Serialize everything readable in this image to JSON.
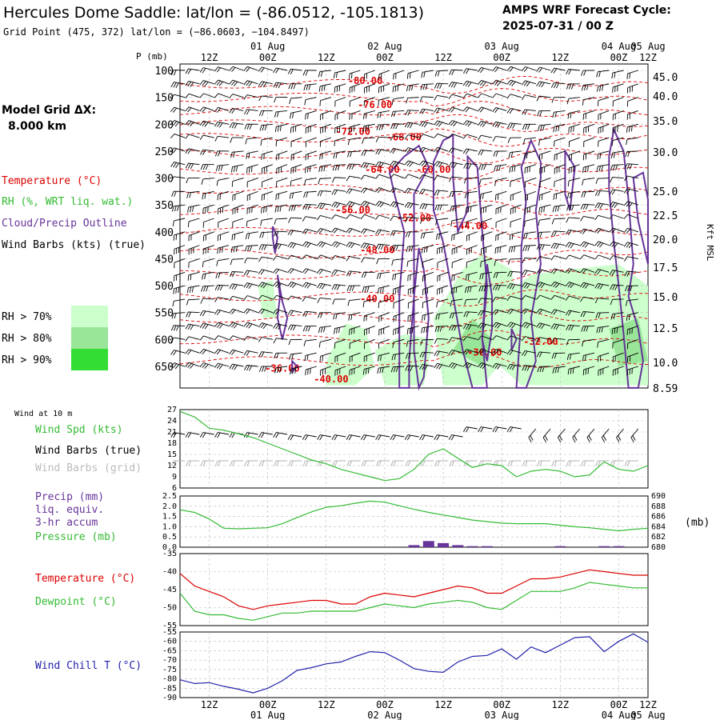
{
  "header": {
    "title": "Hercules Dome Saddle:  lat/lon = (-86.0512, -105.1813)",
    "subtitle": "Grid Point (475, 372) lat/lon = (−86.0603, −104.8497)",
    "cycle_label": "AMPS WRF Forecast Cycle:",
    "cycle_value": "2025-07-31 / 00  Z"
  },
  "time_axis": {
    "ticks": [
      "12Z",
      "00Z",
      "12Z",
      "00Z",
      "12Z",
      "00Z",
      "12Z",
      "00Z",
      "12Z",
      "00Z"
    ],
    "dates": [
      "01 Aug",
      "02 Aug",
      "03 Aug",
      "04 Aug",
      "05 Aug"
    ]
  },
  "left_legend": {
    "model_grid_line1": "Model Grid ΔX:",
    "model_grid_line2": "8.000 km",
    "temperature": "Temperature (°C)",
    "rh": "RH (%, WRT liq. wat.)",
    "cloud": "Cloud/Precip Outline",
    "wind": "Wind Barbs (kts) (true)",
    "rh70": "RH > 70%",
    "rh80": "RH > 80%",
    "rh90": "RH > 90%",
    "rh_colors": [
      "#ccffcc",
      "#99e699",
      "#33dd33"
    ]
  },
  "chart_data": [
    {
      "type": "contour",
      "name": "upper-air cross-section",
      "ylabel": "P (mb)",
      "y2label": "Kft MSL",
      "pressure_ticks": [
        "100",
        "150",
        "200",
        "250",
        "300",
        "350",
        "400",
        "450",
        "500",
        "550",
        "600",
        "650"
      ],
      "height_ticks": [
        "45.0",
        "40.0",
        "35.0",
        "30.0",
        "25.0",
        "22.5",
        "20.0",
        "17.5",
        "15.0",
        "12.5",
        "10.0",
        "8.59"
      ],
      "temperature_labels": [
        {
          "text": "-80.00",
          "t": 38.0,
          "p": 125
        },
        {
          "text": "-76.00",
          "t": 40.0,
          "p": 170
        },
        {
          "text": "-72.00",
          "t": 35.5,
          "p": 220
        },
        {
          "text": "-68.00",
          "t": 46.0,
          "p": 230
        },
        {
          "text": "-64.00",
          "t": 41.5,
          "p": 290
        },
        {
          "text": "-60.00",
          "t": 52.0,
          "p": 290
        },
        {
          "text": "-56.00",
          "t": 35.5,
          "p": 365
        },
        {
          "text": "-52.00",
          "t": 48.0,
          "p": 380
        },
        {
          "text": "-44.00",
          "t": 59.5,
          "p": 395
        },
        {
          "text": "-48.00",
          "t": 40.5,
          "p": 440
        },
        {
          "text": "-40.00",
          "t": 40.5,
          "p": 530
        },
        {
          "text": "-36.00",
          "t": 62.5,
          "p": 630
        },
        {
          "text": "-32.00",
          "t": 74.0,
          "p": 610
        },
        {
          "text": "-36.00",
          "t": 21.0,
          "p": 660
        },
        {
          "text": "-40.00",
          "t": 31.0,
          "p": 680
        }
      ],
      "colors": {
        "temperature": "#dd0000",
        "cloud": "#663399",
        "rh": "#33dd33",
        "wind": "#000000"
      }
    },
    {
      "type": "line",
      "name": "10 m wind",
      "panel_label": "Wind at 10 m",
      "series_label": "Wind Spd (kts)",
      "barbs_true_label": "Wind Barbs (true)",
      "barbs_grid_label": "Wind Barbs (grid)",
      "yticks": [
        "27",
        "24",
        "21",
        "18",
        "15",
        "12",
        "9",
        "6"
      ],
      "ylim": [
        6,
        27
      ],
      "color": "#33bb33",
      "x": [
        0,
        3,
        6,
        9,
        12,
        15,
        18,
        21,
        24,
        27,
        30,
        33,
        36,
        39,
        42,
        45,
        48,
        51,
        54,
        57,
        60,
        63,
        66,
        69,
        72,
        75,
        78,
        81,
        84,
        87,
        90,
        93,
        96
      ],
      "values": [
        26.5,
        25,
        22,
        21.5,
        20.5,
        19.5,
        18,
        16.5,
        15,
        13.5,
        12.5,
        11,
        10,
        9,
        8,
        8.5,
        11,
        15,
        16.5,
        14,
        11.5,
        12.5,
        12,
        9,
        10.5,
        11,
        10.5,
        9,
        9.5,
        13,
        11,
        10.5,
        12
      ]
    },
    {
      "type": "line",
      "name": "precip and pressure",
      "precip_label1": "Precip (mm)",
      "precip_label2": "liq. equiv.",
      "precip_label3": "3-hr accum",
      "pressure_label": "Pressure (mb)",
      "pressure_unit": "(mb)",
      "precip_yticks": [
        "2.5",
        "2.0",
        "1.5",
        "1.0",
        "0.5",
        "0.0"
      ],
      "pressure_yticks": [
        "690",
        "688",
        "686",
        "684",
        "682",
        "680"
      ],
      "precip_ylim": [
        0,
        2.5
      ],
      "pressure_ylim": [
        680,
        690
      ],
      "pressure_color": "#33bb33",
      "precip_color": "#663399",
      "x": [
        0,
        3,
        6,
        9,
        12,
        15,
        18,
        21,
        24,
        27,
        30,
        33,
        36,
        39,
        42,
        45,
        48,
        51,
        54,
        57,
        60,
        63,
        66,
        69,
        72,
        75,
        78,
        81,
        84,
        87,
        90,
        93,
        96
      ],
      "pressure": [
        687.3,
        686.8,
        685.5,
        683.7,
        683.6,
        683.7,
        683.8,
        684.6,
        685.8,
        686.9,
        687.8,
        688.1,
        688.6,
        689.0,
        688.8,
        688.1,
        687.4,
        686.8,
        686.3,
        685.8,
        685.3,
        685.0,
        684.7,
        684.6,
        684.6,
        684.6,
        684.3,
        684.0,
        683.8,
        683.5,
        683.2,
        683.5,
        683.7
      ],
      "precip": [
        0,
        0,
        0,
        0,
        0,
        0,
        0,
        0,
        0,
        0,
        0,
        0,
        0,
        0,
        0,
        0,
        0.1,
        0.3,
        0.2,
        0.1,
        0.05,
        0.05,
        0,
        0,
        0,
        0,
        0.05,
        0,
        0,
        0.05,
        0.05,
        0,
        0
      ]
    },
    {
      "type": "line",
      "name": "temperature and dewpoint",
      "temperature_label": "Temperature (°C)",
      "dewpoint_label": "Dewpoint (°C)",
      "yticks": [
        "-35",
        "-40",
        "-45",
        "-50",
        "-55"
      ],
      "ylim": [
        -55,
        -35
      ],
      "temperature_color": "#dd0000",
      "dewpoint_color": "#33bb33",
      "x": [
        0,
        3,
        6,
        9,
        12,
        15,
        18,
        21,
        24,
        27,
        30,
        33,
        36,
        39,
        42,
        45,
        48,
        51,
        54,
        57,
        60,
        63,
        66,
        69,
        72,
        75,
        78,
        81,
        84,
        87,
        90,
        93,
        96
      ],
      "temperature": [
        -40.5,
        -44,
        -45.5,
        -47,
        -49.5,
        -50.5,
        -49.5,
        -49,
        -48.5,
        -48,
        -48,
        -49,
        -49,
        -47,
        -46,
        -46.5,
        -47,
        -46,
        -45,
        -44,
        -44.5,
        -46,
        -46,
        -44,
        -42,
        -42,
        -41.5,
        -40.5,
        -39.5,
        -40,
        -40.5,
        -41,
        -41
      ],
      "dewpoint": [
        -46,
        -51,
        -52,
        -52,
        -53,
        -53.5,
        -52.5,
        -51.5,
        -51.5,
        -51,
        -51,
        -51,
        -51,
        -50,
        -49,
        -49.5,
        -50,
        -49,
        -48.5,
        -48,
        -48.5,
        -50,
        -50.5,
        -48,
        -45.5,
        -45.5,
        -45.5,
        -44.5,
        -43,
        -43.5,
        -44,
        -44.5,
        -44.5
      ]
    },
    {
      "type": "line",
      "name": "wind chill",
      "series_label": "Wind Chill T (°C)",
      "yticks": [
        "-55",
        "-60",
        "-65",
        "-70",
        "-75",
        "-80",
        "-85",
        "-90"
      ],
      "ylim": [
        -90,
        -55
      ],
      "color": "#2222aa",
      "x": [
        0,
        3,
        6,
        9,
        12,
        15,
        18,
        21,
        24,
        27,
        30,
        33,
        36,
        39,
        42,
        45,
        48,
        51,
        54,
        57,
        60,
        63,
        66,
        69,
        72,
        75,
        78,
        81,
        84,
        87,
        90,
        93,
        96
      ],
      "values": [
        -80.5,
        -82.5,
        -82,
        -84,
        -85.5,
        -87.5,
        -85,
        -81,
        -75.5,
        -74,
        -72,
        -71,
        -68,
        -65.5,
        -66,
        -70,
        -74.5,
        -76,
        -76.5,
        -71,
        -68,
        -67.5,
        -64,
        -69.5,
        -63,
        -66,
        -62,
        -58,
        -57.5,
        -65.5,
        -60,
        -56,
        -60.5
      ]
    }
  ]
}
